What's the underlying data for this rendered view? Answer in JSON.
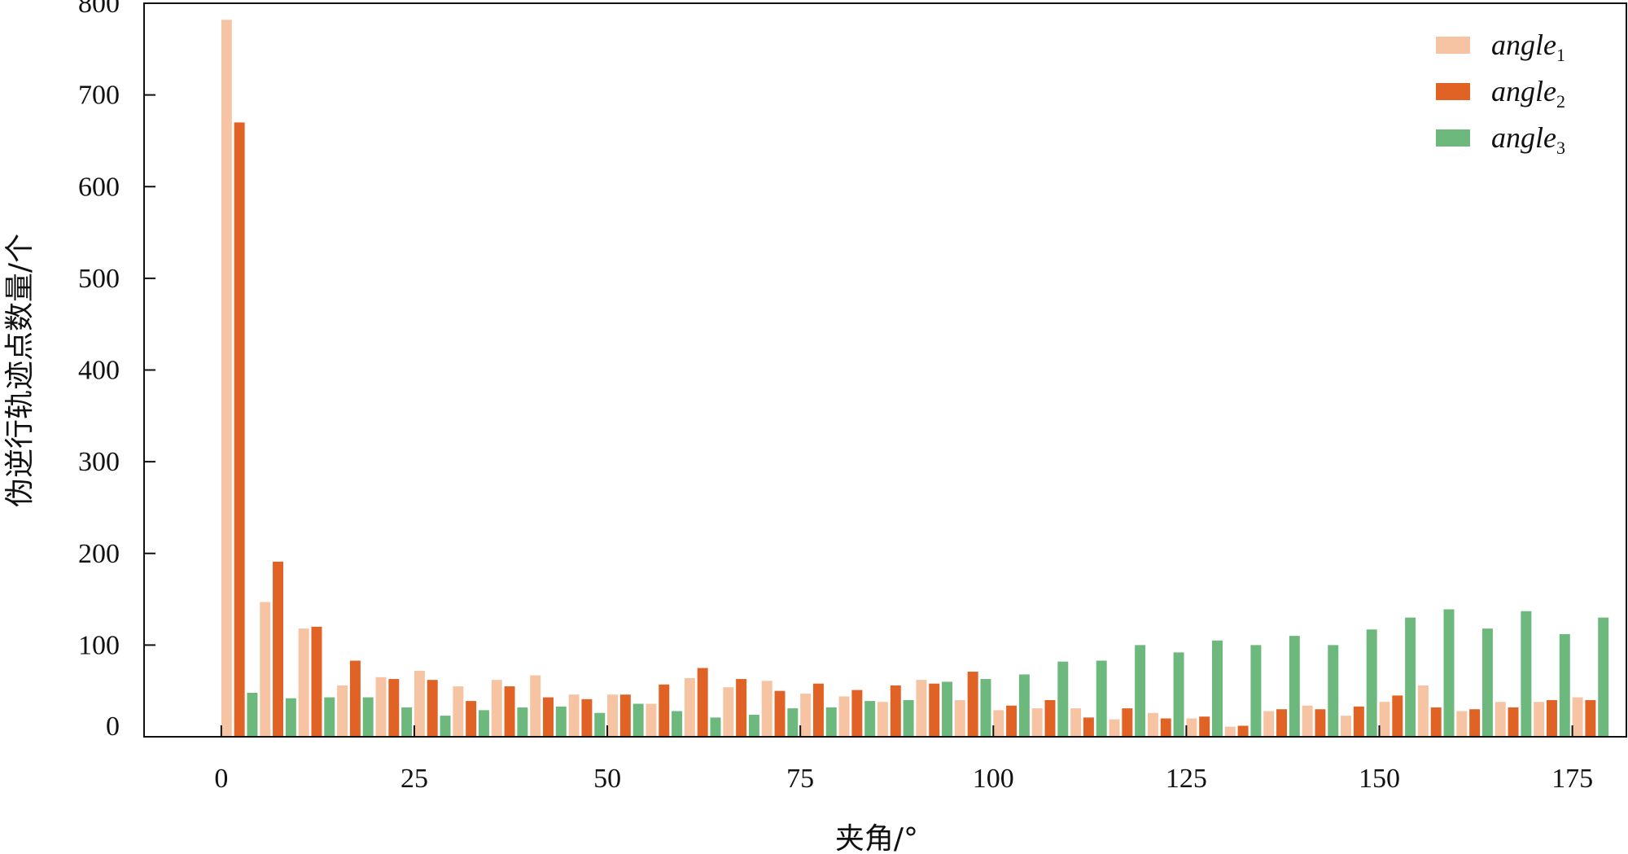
{
  "chart_data": {
    "type": "bar",
    "title": "",
    "xlabel": "夹角/°",
    "ylabel": "伪逆行轨迹点数量/个",
    "xlim": [
      -10,
      182
    ],
    "ylim": [
      0,
      800
    ],
    "xticks": [
      0,
      25,
      50,
      75,
      100,
      125,
      150,
      175
    ],
    "yticks": [
      0,
      100,
      200,
      300,
      400,
      500,
      600,
      700,
      800
    ],
    "bin_width": 5,
    "bin_starts": [
      0,
      5,
      10,
      15,
      20,
      25,
      30,
      35,
      40,
      45,
      50,
      55,
      60,
      65,
      70,
      75,
      80,
      85,
      90,
      95,
      100,
      105,
      110,
      115,
      120,
      125,
      130,
      135,
      140,
      145,
      150,
      155,
      160,
      165,
      170,
      175
    ],
    "legend_position": "top-right",
    "grid": false,
    "series": [
      {
        "name": "angle",
        "subscript": "1",
        "color": "#f6c4a3",
        "values": [
          782,
          147,
          118,
          56,
          65,
          72,
          55,
          62,
          67,
          46,
          46,
          36,
          64,
          54,
          61,
          47,
          44,
          38,
          62,
          40,
          29,
          31,
          31,
          19,
          26,
          20,
          11,
          28,
          34,
          23,
          38,
          56,
          28,
          38,
          38,
          43
        ]
      },
      {
        "name": "angle",
        "subscript": "2",
        "color": "#e06225",
        "values": [
          670,
          191,
          120,
          83,
          63,
          62,
          39,
          55,
          43,
          41,
          46,
          57,
          75,
          63,
          50,
          58,
          51,
          56,
          58,
          71,
          34,
          40,
          21,
          31,
          20,
          22,
          12,
          30,
          30,
          33,
          45,
          32,
          30,
          32,
          40,
          40
        ]
      },
      {
        "name": "angle",
        "subscript": "3",
        "color": "#6cb87d",
        "values": [
          48,
          42,
          43,
          43,
          32,
          23,
          29,
          32,
          33,
          26,
          36,
          28,
          21,
          24,
          31,
          32,
          39,
          40,
          60,
          63,
          68,
          82,
          83,
          100,
          92,
          105,
          100,
          110,
          100,
          117,
          130,
          139,
          118,
          137,
          112,
          130
        ]
      }
    ]
  }
}
